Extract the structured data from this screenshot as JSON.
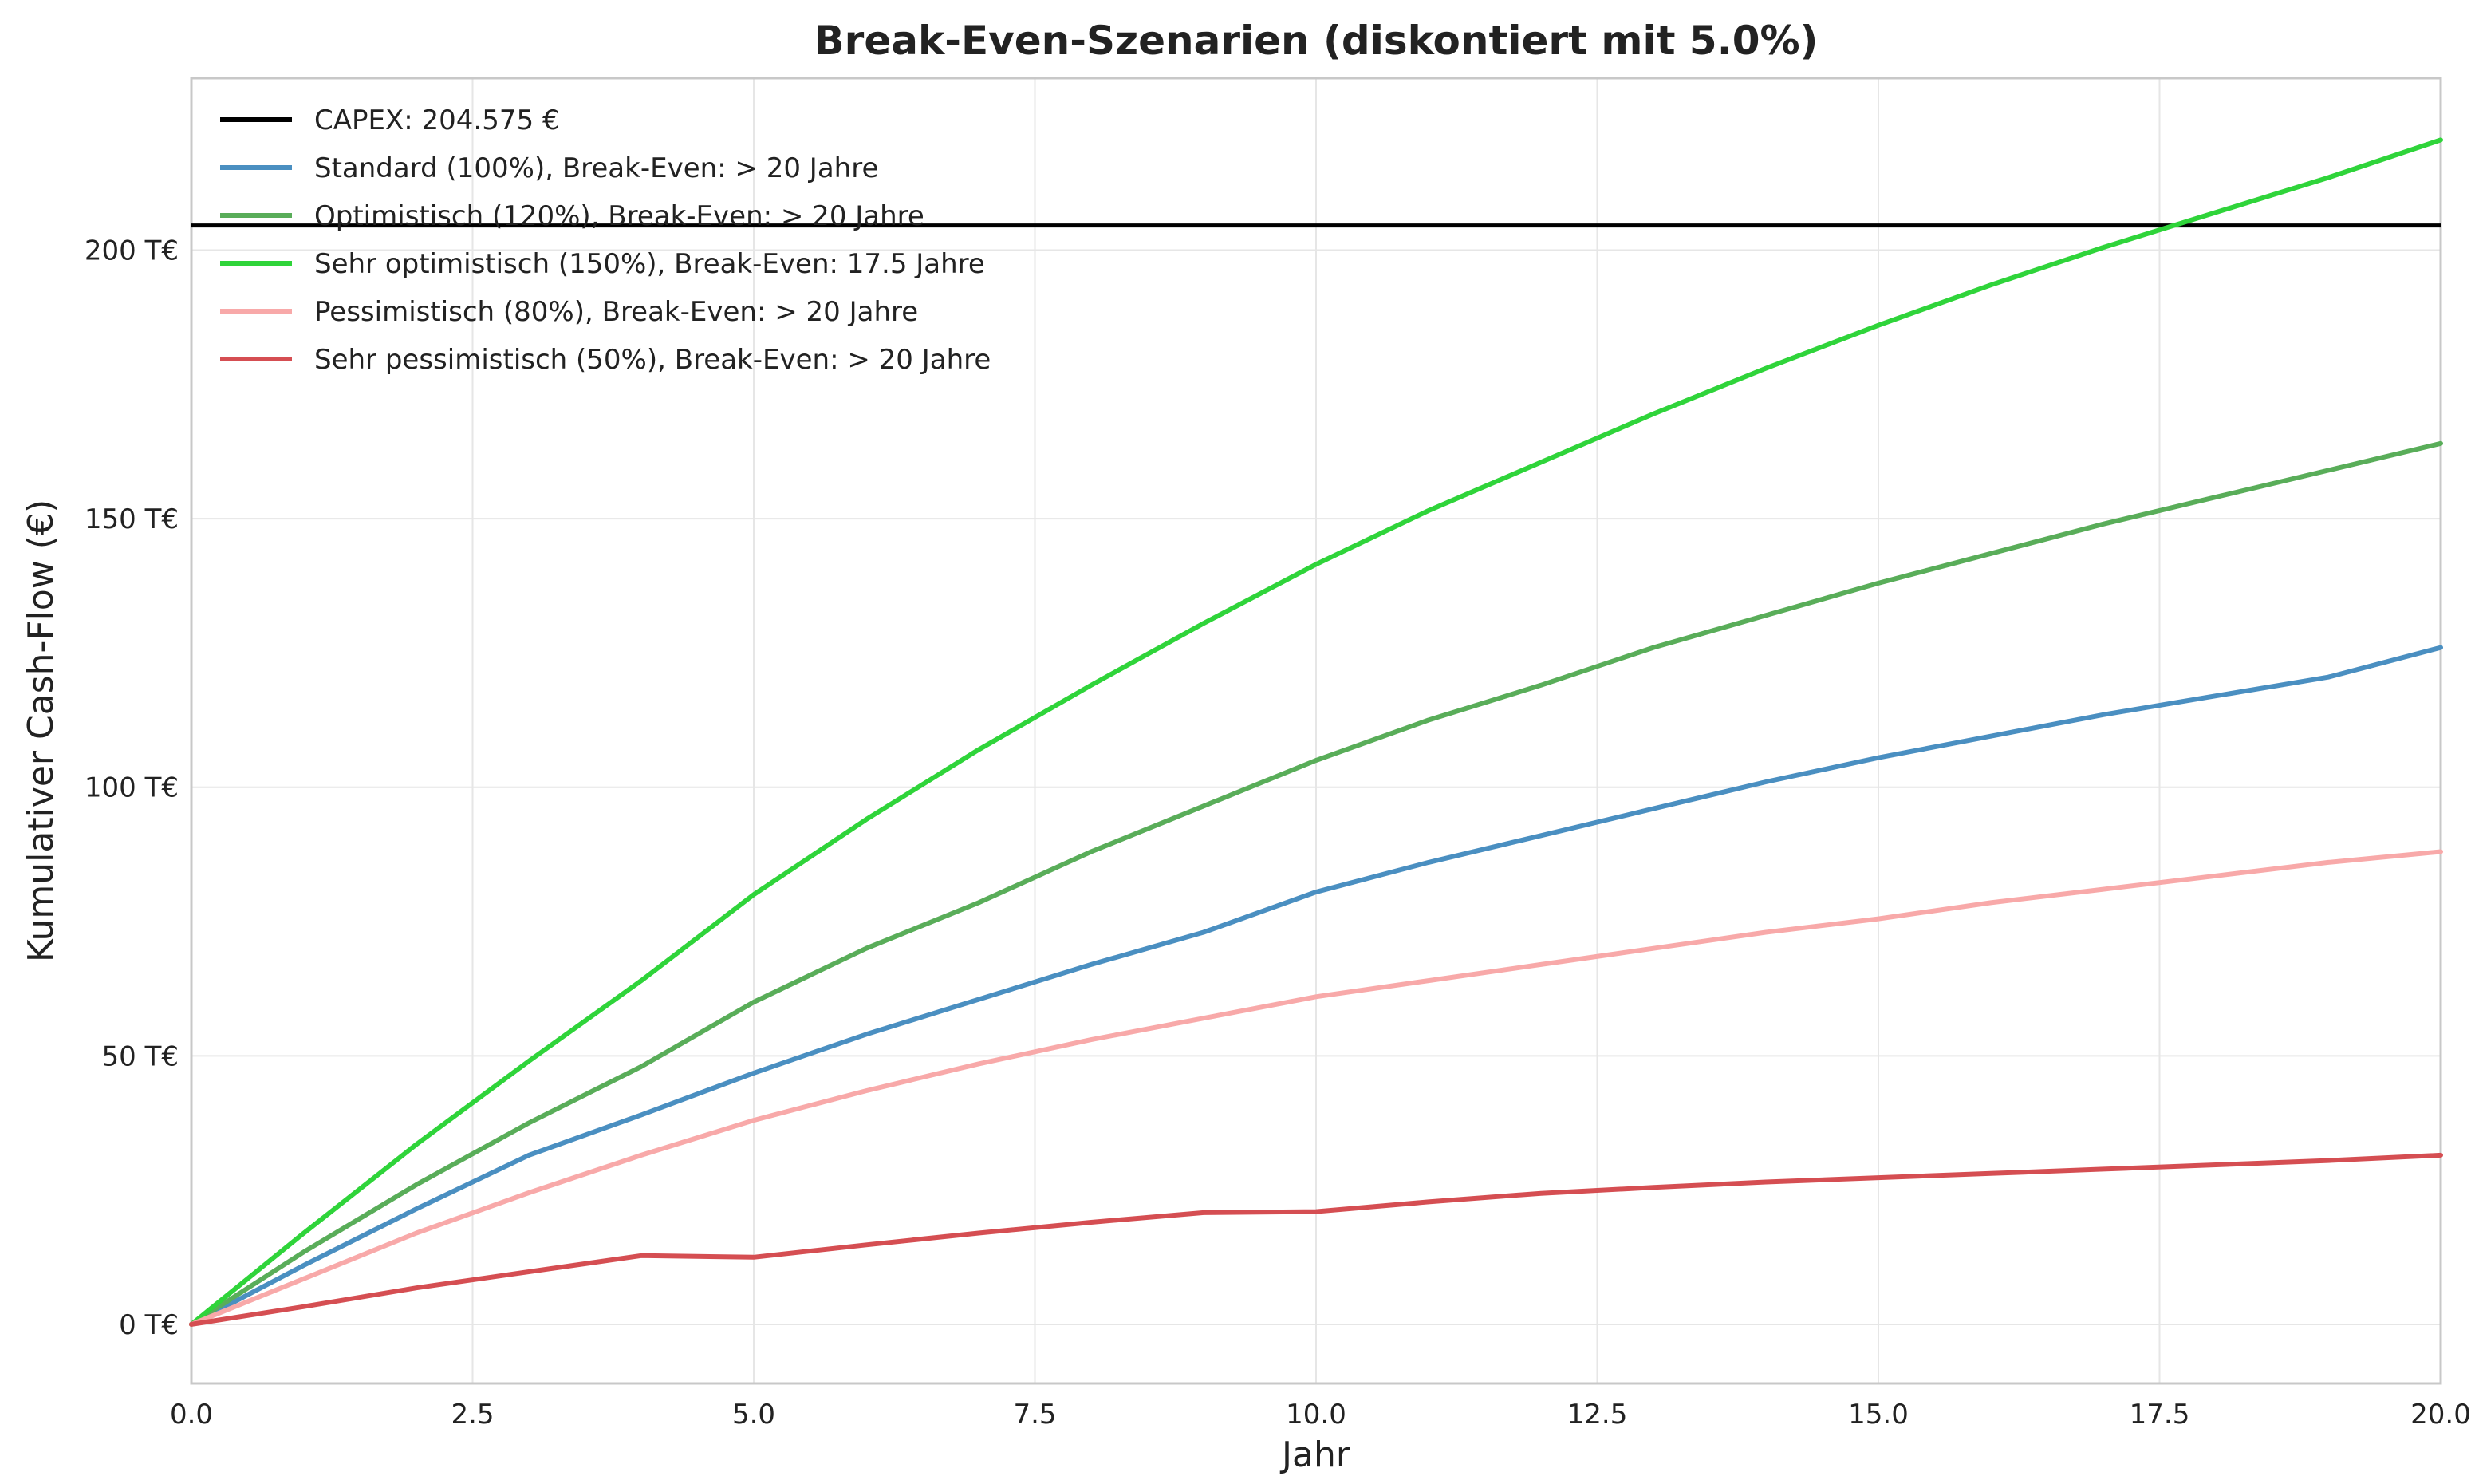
{
  "chart_data": {
    "type": "line",
    "title": "Break-Even-Szenarien (diskontiert mit 5.0%)",
    "xlabel": "Jahr",
    "ylabel": "Kumulativer Cash-Flow (€)",
    "xlim": [
      0,
      20
    ],
    "ylim": [
      -11,
      232
    ],
    "x_ticks": [
      0,
      2.5,
      5,
      7.5,
      10,
      12.5,
      15,
      17.5,
      20
    ],
    "x_tick_labels": [
      "0.0",
      "2.5",
      "5.0",
      "7.5",
      "10.0",
      "12.5",
      "15.0",
      "17.5",
      "20.0"
    ],
    "y_ticks": [
      0,
      50,
      100,
      150,
      200
    ],
    "y_tick_labels": [
      "0 T€",
      "50 T€",
      "100 T€",
      "150 T€",
      "200 T€"
    ],
    "y_unit": "T€",
    "grid": true,
    "legend_position": "top-left",
    "reference_line": {
      "name": "CAPEX: 204.575 €",
      "value": 204.575,
      "color": "#000000"
    },
    "x": [
      0,
      1,
      2,
      3,
      4,
      5,
      6,
      7,
      8,
      9,
      10,
      11,
      12,
      13,
      14,
      15,
      16,
      17,
      18,
      19,
      20
    ],
    "series": [
      {
        "name": "Standard (100%), Break-Even: > 20 Jahre",
        "color": "#4a8fc1",
        "values": [
          0,
          11.0,
          21.5,
          31.5,
          39.0,
          46.8,
          54.0,
          60.5,
          67.0,
          73.0,
          80.5,
          86.0,
          91.0,
          96.0,
          101.0,
          105.5,
          109.5,
          113.5,
          117.0,
          120.5,
          126.0
        ]
      },
      {
        "name": "Optimistisch (120%), Break-Even: > 20 Jahre",
        "color": "#59ad59",
        "values": [
          0,
          13.5,
          26.0,
          37.5,
          48.0,
          60.0,
          70.0,
          78.5,
          88.0,
          96.5,
          105.0,
          112.5,
          119.0,
          126.0,
          132.0,
          138.0,
          143.5,
          149.0,
          154.0,
          159.0,
          164.0
        ]
      },
      {
        "name": "Sehr optimistisch (150%), Break-Even: 17.5 Jahre",
        "color": "#2fd43a",
        "values": [
          0,
          17.0,
          33.5,
          49.0,
          64.0,
          80.0,
          94.0,
          107.0,
          119.0,
          130.5,
          141.5,
          151.5,
          160.5,
          169.5,
          178.0,
          186.0,
          193.5,
          200.5,
          207.0,
          213.5,
          220.5
        ]
      },
      {
        "name": "Pessimistisch (80%), Break-Even: > 20 Jahre",
        "color": "#f8a9a9",
        "values": [
          0,
          8.5,
          17.0,
          24.5,
          31.5,
          38.0,
          43.5,
          48.5,
          53.0,
          57.0,
          61.0,
          64.0,
          67.0,
          70.0,
          73.0,
          75.5,
          78.5,
          81.0,
          83.5,
          86.0,
          88.0
        ]
      },
      {
        "name": "Sehr pessimistisch (50%), Break-Even: > 20 Jahre",
        "color": "#d54e52",
        "values": [
          0,
          3.3,
          6.8,
          9.8,
          12.8,
          12.5,
          14.8,
          17.0,
          19.0,
          20.8,
          21.0,
          22.8,
          24.4,
          25.5,
          26.5,
          27.3,
          28.1,
          28.9,
          29.7,
          30.5,
          31.5
        ]
      }
    ]
  }
}
